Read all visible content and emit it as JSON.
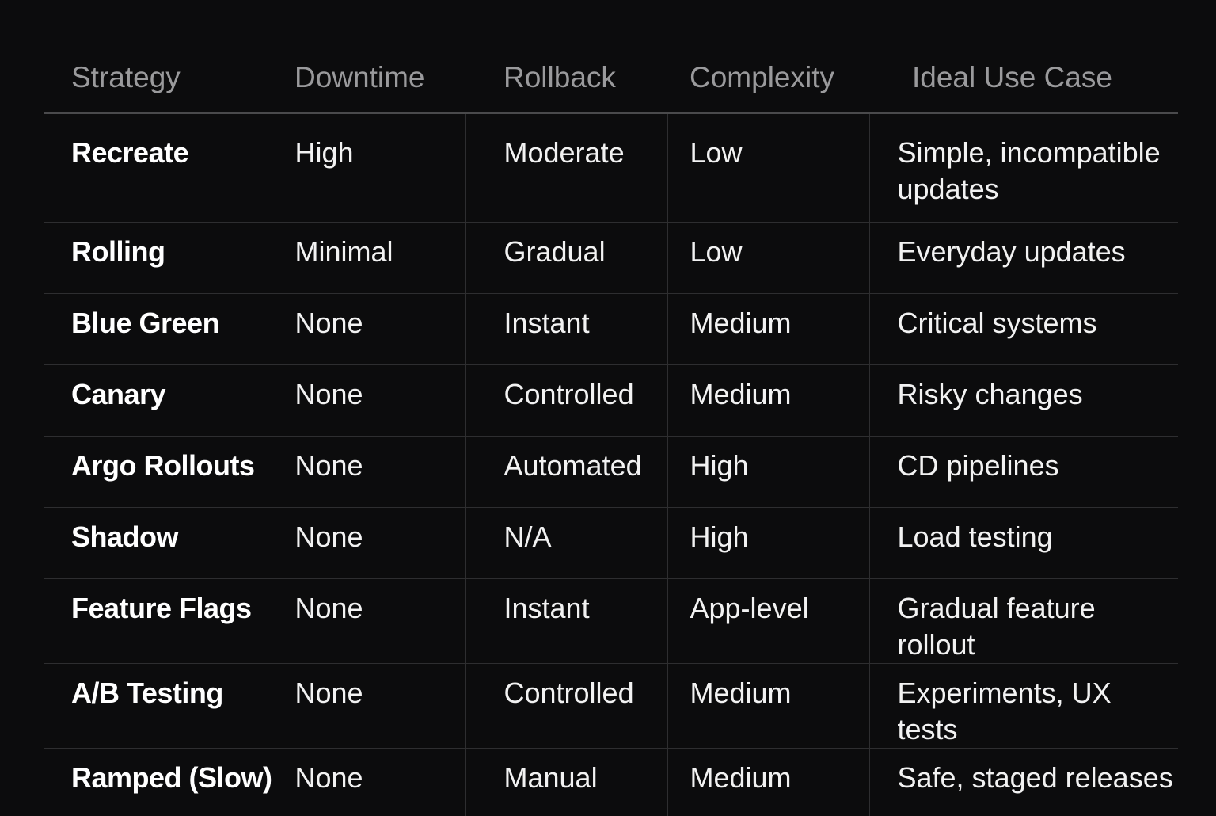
{
  "table": {
    "headers": [
      "Strategy",
      "Downtime",
      "Rollback",
      "Complexity",
      "Ideal Use Case"
    ],
    "rows": [
      [
        "Recreate",
        "High",
        "Moderate",
        "Low",
        "Simple, incompatible updates"
      ],
      [
        "Rolling",
        "Minimal",
        "Gradual",
        "Low",
        "Everyday updates"
      ],
      [
        "Blue Green",
        "None",
        "Instant",
        "Medium",
        "Critical systems"
      ],
      [
        "Canary",
        "None",
        "Controlled",
        "Medium",
        "Risky changes"
      ],
      [
        "Argo Rollouts",
        "None",
        "Automated",
        "High",
        "CD pipelines"
      ],
      [
        "Shadow",
        "None",
        "N/A",
        "High",
        "Load testing"
      ],
      [
        "Feature Flags",
        "None",
        "Instant",
        "App-level",
        "Gradual feature rollout"
      ],
      [
        "A/B Testing",
        "None",
        "Controlled",
        "Medium",
        "Experiments, UX tests"
      ],
      [
        "Ramped (Slow)",
        "None",
        "Manual",
        "Medium",
        "Safe, staged releases"
      ]
    ]
  },
  "colors": {
    "background": "#0c0c0d",
    "header_text": "#9a9a9c",
    "cell_text": "#f2f2f2",
    "grid": "#2e2e30"
  }
}
